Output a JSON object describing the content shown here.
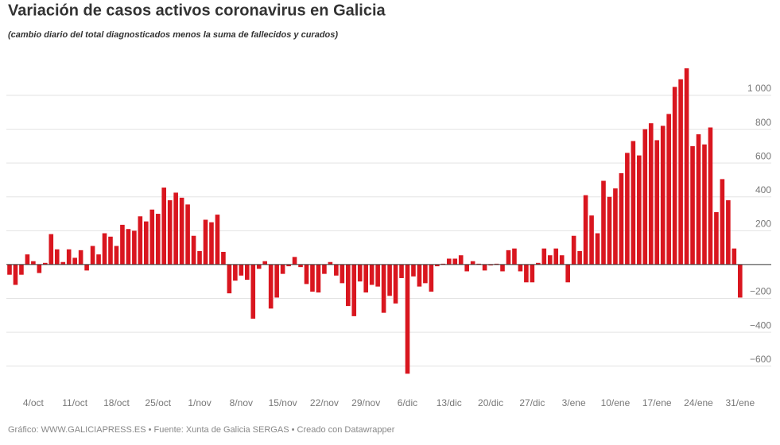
{
  "chart_data": {
    "type": "bar",
    "title": "Variación de casos activos coronavirus en Galicia",
    "subtitle": "(cambio diario del total diagnosticados menos la suma de fallecidos y curados)",
    "footer": "Gráfico: WWW.GALICIAPRESS.ES • Fuente: Xunta de Galicia SERGAS • Creado con Datawrapper",
    "color": "#d9161f",
    "grid": true,
    "ylim": [
      -700,
      1200
    ],
    "yticks": [
      {
        "value": -600,
        "label": "−600"
      },
      {
        "value": -400,
        "label": "−400"
      },
      {
        "value": -200,
        "label": "−200"
      },
      200,
      400,
      600,
      800,
      {
        "value": 1000,
        "label": "1 000"
      }
    ],
    "categories": [
      null,
      null,
      null,
      null,
      "4/oct",
      null,
      null,
      null,
      null,
      null,
      null,
      "11/oct",
      null,
      null,
      null,
      null,
      null,
      null,
      "18/oct",
      null,
      null,
      null,
      null,
      null,
      null,
      "25/oct",
      null,
      null,
      null,
      null,
      null,
      null,
      "1/nov",
      null,
      null,
      null,
      null,
      null,
      null,
      "8/nov",
      null,
      null,
      null,
      null,
      null,
      null,
      "15/nov",
      null,
      null,
      null,
      null,
      null,
      null,
      "22/nov",
      null,
      null,
      null,
      null,
      null,
      null,
      "29/nov",
      null,
      null,
      null,
      null,
      null,
      null,
      "6/dic",
      null,
      null,
      null,
      null,
      null,
      null,
      "13/dic",
      null,
      null,
      null,
      null,
      null,
      null,
      "20/dic",
      null,
      null,
      null,
      null,
      null,
      null,
      "27/dic",
      null,
      null,
      null,
      null,
      null,
      null,
      "3/ene",
      null,
      null,
      null,
      null,
      null,
      null,
      "10/ene",
      null,
      null,
      null,
      null,
      null,
      null,
      "17/ene",
      null,
      null,
      null,
      null,
      null,
      null,
      "24/ene",
      null,
      null,
      null,
      null,
      null,
      null,
      "31/ene"
    ],
    "values": [
      -60,
      -120,
      -60,
      60,
      20,
      -50,
      10,
      180,
      90,
      15,
      90,
      40,
      85,
      -35,
      110,
      60,
      185,
      165,
      110,
      235,
      210,
      200,
      285,
      255,
      325,
      300,
      455,
      380,
      425,
      395,
      355,
      170,
      80,
      265,
      250,
      295,
      75,
      -170,
      -95,
      -65,
      -90,
      -320,
      -25,
      20,
      -260,
      -195,
      -55,
      -10,
      45,
      -15,
      -115,
      -160,
      -165,
      -55,
      15,
      -65,
      -110,
      -245,
      -305,
      -100,
      -165,
      -120,
      -130,
      -285,
      -185,
      -230,
      -80,
      -645,
      -70,
      -130,
      -110,
      -160,
      -10,
      5,
      35,
      35,
      55,
      -40,
      20,
      5,
      -35,
      -5,
      5,
      -40,
      85,
      95,
      -40,
      -105,
      -105,
      10,
      95,
      55,
      95,
      55,
      -105,
      170,
      80,
      410,
      290,
      185,
      495,
      400,
      450,
      540,
      660,
      730,
      645,
      800,
      835,
      735,
      820,
      890,
      1050,
      1095,
      1160,
      700,
      770,
      710,
      810,
      310,
      505,
      380,
      95,
      -195
    ]
  }
}
